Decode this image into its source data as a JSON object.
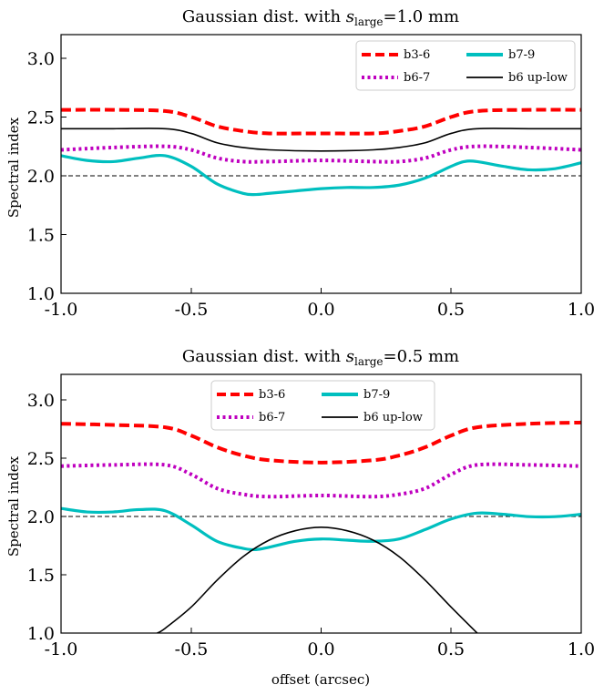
{
  "chart_data": [
    {
      "type": "line",
      "title_prefix": "Gaussian dist. with ",
      "title_var": "s",
      "title_sub": "large",
      "title_suffix": "=1.0 mm",
      "xlabel": "",
      "ylabel": "Spectral index",
      "xlim": [
        -1.0,
        1.0
      ],
      "ylim": [
        1.0,
        3.2
      ],
      "xticks": [
        "-1.0",
        "-0.5",
        "0.0",
        "0.5",
        "1.0"
      ],
      "yticks": [
        "1.0",
        "1.5",
        "2.0",
        "2.5",
        "3.0"
      ],
      "legend_position": "top-right",
      "reference_line": {
        "y": 2.0,
        "style": "dashed"
      },
      "series": [
        {
          "name": "b3-6",
          "color": "#ff0000",
          "style": "dashed",
          "x": [
            -1.0,
            -0.8,
            -0.6,
            -0.5,
            -0.4,
            -0.3,
            -0.2,
            0.0,
            0.2,
            0.3,
            0.4,
            0.5,
            0.6,
            0.8,
            1.0
          ],
          "y": [
            2.56,
            2.56,
            2.55,
            2.5,
            2.42,
            2.38,
            2.36,
            2.36,
            2.36,
            2.38,
            2.42,
            2.5,
            2.55,
            2.56,
            2.56
          ]
        },
        {
          "name": "b6-7",
          "color": "#bf00bf",
          "style": "dotted",
          "x": [
            -1.0,
            -0.8,
            -0.6,
            -0.5,
            -0.4,
            -0.3,
            -0.2,
            0.0,
            0.2,
            0.3,
            0.4,
            0.5,
            0.6,
            0.8,
            1.0
          ],
          "y": [
            2.22,
            2.24,
            2.25,
            2.22,
            2.15,
            2.12,
            2.12,
            2.13,
            2.12,
            2.12,
            2.15,
            2.22,
            2.25,
            2.24,
            2.22
          ]
        },
        {
          "name": "b7-9",
          "color": "#00bfbf",
          "style": "solid",
          "x": [
            -1.0,
            -0.9,
            -0.8,
            -0.7,
            -0.6,
            -0.5,
            -0.4,
            -0.3,
            -0.25,
            -0.2,
            -0.1,
            0.0,
            0.1,
            0.2,
            0.3,
            0.4,
            0.5,
            0.55,
            0.6,
            0.7,
            0.8,
            0.9,
            1.0
          ],
          "y": [
            2.17,
            2.13,
            2.12,
            2.15,
            2.17,
            2.08,
            1.93,
            1.85,
            1.84,
            1.85,
            1.87,
            1.89,
            1.9,
            1.9,
            1.92,
            1.98,
            2.08,
            2.12,
            2.12,
            2.08,
            2.05,
            2.06,
            2.11
          ]
        },
        {
          "name": "b6 up-low",
          "color": "#000000",
          "style": "thin",
          "x": [
            -1.0,
            -0.8,
            -0.6,
            -0.5,
            -0.4,
            -0.3,
            -0.2,
            0.0,
            0.2,
            0.3,
            0.4,
            0.5,
            0.6,
            0.8,
            1.0
          ],
          "y": [
            2.4,
            2.4,
            2.4,
            2.36,
            2.28,
            2.24,
            2.22,
            2.21,
            2.22,
            2.24,
            2.28,
            2.36,
            2.4,
            2.4,
            2.4
          ]
        }
      ]
    },
    {
      "type": "line",
      "title_prefix": "Gaussian dist. with ",
      "title_var": "s",
      "title_sub": "large",
      "title_suffix": "=0.5 mm",
      "xlabel": "offset (arcsec)",
      "ylabel": "Spectral index",
      "xlim": [
        -1.0,
        1.0
      ],
      "ylim": [
        1.0,
        3.2
      ],
      "xticks": [
        "-1.0",
        "-0.5",
        "0.0",
        "0.5",
        "1.0"
      ],
      "yticks": [
        "1.0",
        "1.5",
        "2.0",
        "2.5",
        "3.0"
      ],
      "legend_position": "top-center",
      "reference_line": {
        "y": 2.0,
        "style": "dashed"
      },
      "series": [
        {
          "name": "b3-6",
          "color": "#ff0000",
          "style": "dashed",
          "x": [
            -1.0,
            -0.8,
            -0.6,
            -0.5,
            -0.4,
            -0.3,
            -0.2,
            0.0,
            0.2,
            0.3,
            0.4,
            0.5,
            0.6,
            0.8,
            1.0
          ],
          "y": [
            2.78,
            2.77,
            2.75,
            2.68,
            2.58,
            2.51,
            2.47,
            2.45,
            2.47,
            2.51,
            2.58,
            2.68,
            2.75,
            2.78,
            2.79
          ]
        },
        {
          "name": "b6-7",
          "color": "#bf00bf",
          "style": "dotted",
          "x": [
            -1.0,
            -0.8,
            -0.6,
            -0.5,
            -0.4,
            -0.3,
            -0.2,
            0.0,
            0.2,
            0.3,
            0.4,
            0.5,
            0.6,
            0.8,
            1.0
          ],
          "y": [
            2.42,
            2.43,
            2.43,
            2.35,
            2.23,
            2.18,
            2.16,
            2.17,
            2.16,
            2.18,
            2.23,
            2.35,
            2.43,
            2.43,
            2.42
          ]
        },
        {
          "name": "b7-9",
          "color": "#00bfbf",
          "style": "solid",
          "x": [
            -1.0,
            -0.9,
            -0.8,
            -0.7,
            -0.6,
            -0.5,
            -0.4,
            -0.3,
            -0.25,
            -0.2,
            -0.1,
            0.0,
            0.1,
            0.2,
            0.3,
            0.4,
            0.5,
            0.6,
            0.7,
            0.8,
            0.9,
            1.0
          ],
          "y": [
            2.06,
            2.03,
            2.03,
            2.05,
            2.04,
            1.92,
            1.78,
            1.72,
            1.71,
            1.73,
            1.78,
            1.8,
            1.79,
            1.78,
            1.8,
            1.88,
            1.97,
            2.02,
            2.01,
            1.99,
            1.99,
            2.01
          ]
        },
        {
          "name": "b6 up-low",
          "color": "#000000",
          "style": "thin",
          "x": [
            -0.63,
            -0.6,
            -0.5,
            -0.4,
            -0.3,
            -0.2,
            -0.1,
            0.0,
            0.1,
            0.2,
            0.3,
            0.4,
            0.5,
            0.6
          ],
          "y": [
            1.0,
            1.04,
            1.22,
            1.45,
            1.65,
            1.79,
            1.87,
            1.9,
            1.87,
            1.79,
            1.65,
            1.45,
            1.22,
            1.0
          ]
        }
      ]
    }
  ]
}
